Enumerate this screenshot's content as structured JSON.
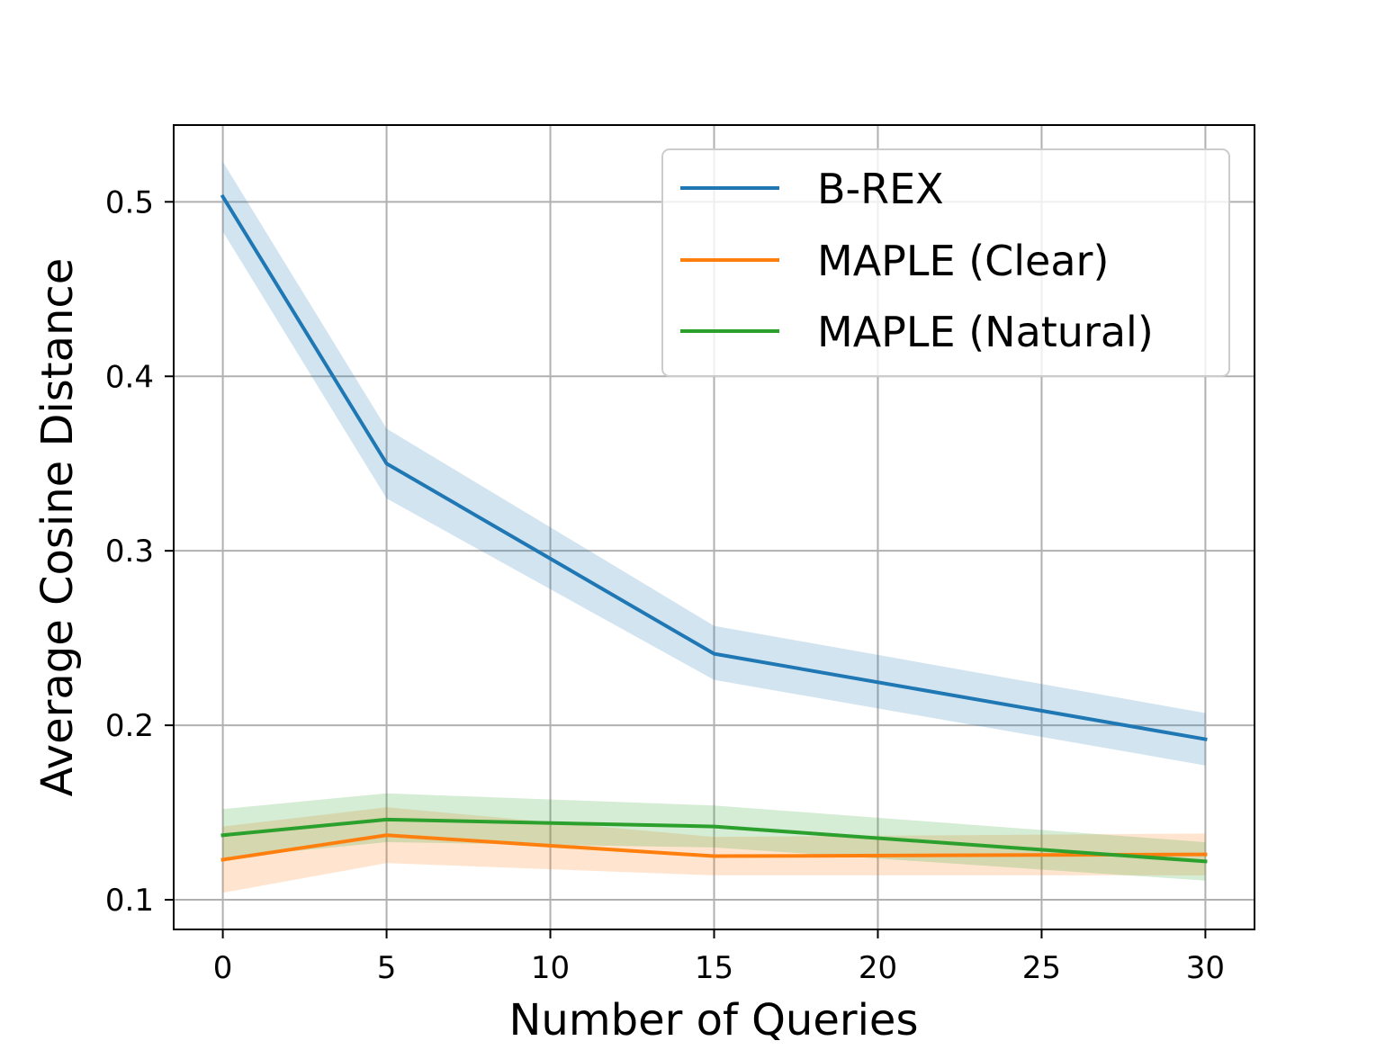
{
  "chart_data": {
    "type": "line",
    "title": "",
    "xlabel": "Number of Queries",
    "ylabel": "Average Cosine Distance",
    "xlim": [
      -1.5,
      31.5
    ],
    "ylim": [
      0.083,
      0.544
    ],
    "xticks": [
      0,
      5,
      10,
      15,
      20,
      25,
      30
    ],
    "yticks": [
      0.1,
      0.2,
      0.3,
      0.4,
      0.5
    ],
    "xtick_labels": [
      "0",
      "5",
      "10",
      "15",
      "20",
      "25",
      "30"
    ],
    "ytick_labels": [
      "0.1",
      "0.2",
      "0.3",
      "0.4",
      "0.5"
    ],
    "grid": true,
    "legend_position": "top-right",
    "x": [
      0,
      5,
      15,
      30
    ],
    "series": [
      {
        "name": "B-REX",
        "color": "#1f77b4",
        "values": [
          0.503,
          0.35,
          0.241,
          0.192
        ],
        "lower": [
          0.483,
          0.33,
          0.226,
          0.177
        ],
        "upper": [
          0.523,
          0.37,
          0.257,
          0.207
        ]
      },
      {
        "name": "MAPLE (Clear)",
        "color": "#ff7f0e",
        "values": [
          0.123,
          0.137,
          0.125,
          0.126
        ],
        "lower": [
          0.104,
          0.121,
          0.114,
          0.114
        ],
        "upper": [
          0.142,
          0.153,
          0.136,
          0.138
        ]
      },
      {
        "name": "MAPLE (Natural)",
        "color": "#2ca02c",
        "values": [
          0.137,
          0.146,
          0.142,
          0.122
        ],
        "lower": [
          0.124,
          0.133,
          0.13,
          0.111
        ],
        "upper": [
          0.152,
          0.161,
          0.154,
          0.133
        ]
      }
    ]
  }
}
